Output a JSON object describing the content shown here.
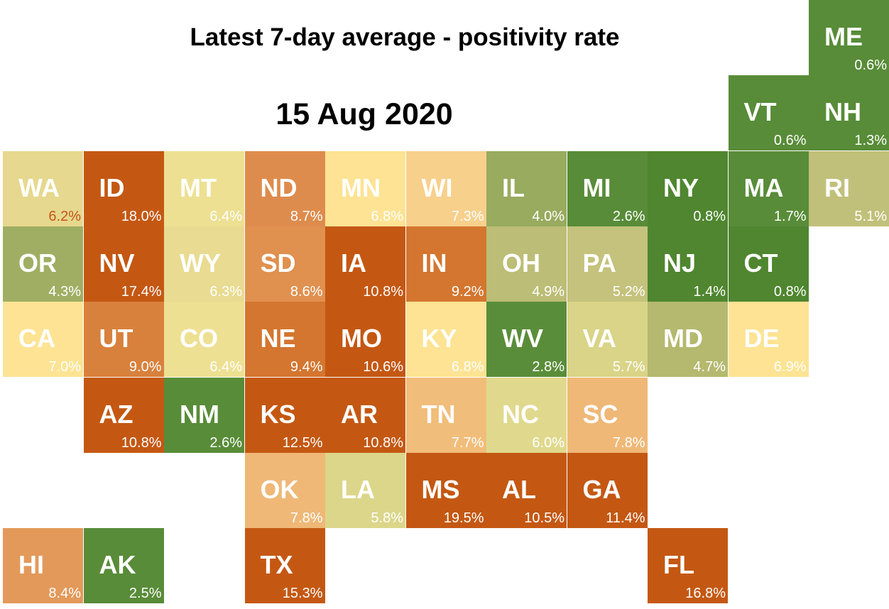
{
  "title": "Latest 7-day average - positivity rate",
  "date": "15 Aug 2020",
  "states": [
    {
      "abbr": "ME",
      "value": "0.6%",
      "col": 10,
      "row": 0,
      "color": "#588c38",
      "text": "#ffffff",
      "pct_color": "#ffffff"
    },
    {
      "abbr": "VT",
      "value": "0.6%",
      "col": 9,
      "row": 1,
      "color": "#588c38",
      "text": "#ffffff",
      "pct_color": "#ffffff"
    },
    {
      "abbr": "NH",
      "value": "1.3%",
      "col": 10,
      "row": 1,
      "color": "#588c38",
      "text": "#ffffff",
      "pct_color": "#ffffff"
    },
    {
      "abbr": "WA",
      "value": "6.2%",
      "col": 0,
      "row": 2,
      "color": "#e6d88e",
      "text": "#ffffff",
      "pct_color": "#c5561b"
    },
    {
      "abbr": "ID",
      "value": "18.0%",
      "col": 1,
      "row": 2,
      "color": "#c45813",
      "text": "#ffffff",
      "pct_color": "#ffffff"
    },
    {
      "abbr": "MT",
      "value": "6.4%",
      "col": 2,
      "row": 2,
      "color": "#ede092",
      "text": "#ffffff",
      "pct_color": "#ffffff"
    },
    {
      "abbr": "ND",
      "value": "8.7%",
      "col": 3,
      "row": 2,
      "color": "#de8c4d",
      "text": "#ffffff",
      "pct_color": "#ffffff"
    },
    {
      "abbr": "MN",
      "value": "6.8%",
      "col": 4,
      "row": 2,
      "color": "#fde393",
      "text": "#ffffff",
      "pct_color": "#ffffff"
    },
    {
      "abbr": "WI",
      "value": "7.3%",
      "col": 5,
      "row": 2,
      "color": "#f7d08c",
      "text": "#ffffff",
      "pct_color": "#ffffff"
    },
    {
      "abbr": "IL",
      "value": "4.0%",
      "col": 6,
      "row": 2,
      "color": "#98ab5f",
      "text": "#ffffff",
      "pct_color": "#ffffff"
    },
    {
      "abbr": "MI",
      "value": "2.6%",
      "col": 7,
      "row": 2,
      "color": "#588c38",
      "text": "#ffffff",
      "pct_color": "#ffffff"
    },
    {
      "abbr": "NY",
      "value": "0.8%",
      "col": 8,
      "row": 2,
      "color": "#4f862f",
      "text": "#ffffff",
      "pct_color": "#ffffff"
    },
    {
      "abbr": "MA",
      "value": "1.7%",
      "col": 9,
      "row": 2,
      "color": "#588c38",
      "text": "#ffffff",
      "pct_color": "#ffffff"
    },
    {
      "abbr": "RI",
      "value": "5.1%",
      "col": 10,
      "row": 2,
      "color": "#c1c07a",
      "text": "#ffffff",
      "pct_color": "#ffffff"
    },
    {
      "abbr": "OR",
      "value": "4.3%",
      "col": 0,
      "row": 3,
      "color": "#a0ae64",
      "text": "#ffffff",
      "pct_color": "#ffffff"
    },
    {
      "abbr": "NV",
      "value": "17.4%",
      "col": 1,
      "row": 3,
      "color": "#c45813",
      "text": "#ffffff",
      "pct_color": "#ffffff"
    },
    {
      "abbr": "WY",
      "value": "6.3%",
      "col": 2,
      "row": 3,
      "color": "#e9db91",
      "text": "#ffffff",
      "pct_color": "#ffffff"
    },
    {
      "abbr": "SD",
      "value": "8.6%",
      "col": 3,
      "row": 3,
      "color": "#e0904f",
      "text": "#ffffff",
      "pct_color": "#ffffff"
    },
    {
      "abbr": "IA",
      "value": "10.8%",
      "col": 4,
      "row": 3,
      "color": "#c45813",
      "text": "#ffffff",
      "pct_color": "#ffffff"
    },
    {
      "abbr": "IN",
      "value": "9.2%",
      "col": 5,
      "row": 3,
      "color": "#d4762f",
      "text": "#ffffff",
      "pct_color": "#ffffff"
    },
    {
      "abbr": "OH",
      "value": "4.9%",
      "col": 6,
      "row": 3,
      "color": "#bcbd76",
      "text": "#ffffff",
      "pct_color": "#ffffff"
    },
    {
      "abbr": "PA",
      "value": "5.2%",
      "col": 7,
      "row": 3,
      "color": "#c4c27c",
      "text": "#ffffff",
      "pct_color": "#ffffff"
    },
    {
      "abbr": "NJ",
      "value": "1.4%",
      "col": 8,
      "row": 3,
      "color": "#4f862f",
      "text": "#ffffff",
      "pct_color": "#ffffff"
    },
    {
      "abbr": "CT",
      "value": "0.8%",
      "col": 9,
      "row": 3,
      "color": "#4f862f",
      "text": "#ffffff",
      "pct_color": "#ffffff"
    },
    {
      "abbr": "CA",
      "value": "7.0%",
      "col": 0,
      "row": 4,
      "color": "#fde393",
      "text": "#ffffff",
      "pct_color": "#ffffff"
    },
    {
      "abbr": "UT",
      "value": "9.0%",
      "col": 1,
      "row": 4,
      "color": "#d8813d",
      "text": "#ffffff",
      "pct_color": "#ffffff"
    },
    {
      "abbr": "CO",
      "value": "6.4%",
      "col": 2,
      "row": 4,
      "color": "#ede092",
      "text": "#ffffff",
      "pct_color": "#ffffff"
    },
    {
      "abbr": "NE",
      "value": "9.4%",
      "col": 3,
      "row": 4,
      "color": "#d4762f",
      "text": "#ffffff",
      "pct_color": "#ffffff"
    },
    {
      "abbr": "MO",
      "value": "10.6%",
      "col": 4,
      "row": 4,
      "color": "#c45813",
      "text": "#ffffff",
      "pct_color": "#ffffff"
    },
    {
      "abbr": "KY",
      "value": "6.8%",
      "col": 5,
      "row": 4,
      "color": "#fde393",
      "text": "#ffffff",
      "pct_color": "#ffffff"
    },
    {
      "abbr": "WV",
      "value": "2.8%",
      "col": 6,
      "row": 4,
      "color": "#5a8d3a",
      "text": "#ffffff",
      "pct_color": "#ffffff"
    },
    {
      "abbr": "VA",
      "value": "5.7%",
      "col": 7,
      "row": 4,
      "color": "#d9d487",
      "text": "#ffffff",
      "pct_color": "#ffffff"
    },
    {
      "abbr": "MD",
      "value": "4.7%",
      "col": 8,
      "row": 4,
      "color": "#b4b96f",
      "text": "#ffffff",
      "pct_color": "#ffffff"
    },
    {
      "abbr": "DE",
      "value": "6.9%",
      "col": 9,
      "row": 4,
      "color": "#fde393",
      "text": "#ffffff",
      "pct_color": "#ffffff"
    },
    {
      "abbr": "AZ",
      "value": "10.8%",
      "col": 1,
      "row": 5,
      "color": "#c45813",
      "text": "#ffffff",
      "pct_color": "#ffffff"
    },
    {
      "abbr": "NM",
      "value": "2.6%",
      "col": 2,
      "row": 5,
      "color": "#588c38",
      "text": "#ffffff",
      "pct_color": "#ffffff"
    },
    {
      "abbr": "KS",
      "value": "12.5%",
      "col": 3,
      "row": 5,
      "color": "#c45813",
      "text": "#ffffff",
      "pct_color": "#ffffff"
    },
    {
      "abbr": "AR",
      "value": "10.8%",
      "col": 4,
      "row": 5,
      "color": "#c45813",
      "text": "#ffffff",
      "pct_color": "#ffffff"
    },
    {
      "abbr": "TN",
      "value": "7.7%",
      "col": 5,
      "row": 5,
      "color": "#f1bd7a",
      "text": "#ffffff",
      "pct_color": "#ffffff"
    },
    {
      "abbr": "NC",
      "value": "6.0%",
      "col": 6,
      "row": 5,
      "color": "#e0d98d",
      "text": "#ffffff",
      "pct_color": "#ffffff"
    },
    {
      "abbr": "SC",
      "value": "7.8%",
      "col": 7,
      "row": 5,
      "color": "#efb877",
      "text": "#ffffff",
      "pct_color": "#ffffff"
    },
    {
      "abbr": "OK",
      "value": "7.8%",
      "col": 3,
      "row": 6,
      "color": "#efb877",
      "text": "#ffffff",
      "pct_color": "#ffffff"
    },
    {
      "abbr": "LA",
      "value": "5.8%",
      "col": 4,
      "row": 6,
      "color": "#dcd68a",
      "text": "#ffffff",
      "pct_color": "#ffffff"
    },
    {
      "abbr": "MS",
      "value": "19.5%",
      "col": 5,
      "row": 6,
      "color": "#c45813",
      "text": "#ffffff",
      "pct_color": "#ffffff"
    },
    {
      "abbr": "AL",
      "value": "10.5%",
      "col": 6,
      "row": 6,
      "color": "#c45813",
      "text": "#ffffff",
      "pct_color": "#ffffff"
    },
    {
      "abbr": "GA",
      "value": "11.4%",
      "col": 7,
      "row": 6,
      "color": "#c45813",
      "text": "#ffffff",
      "pct_color": "#ffffff"
    },
    {
      "abbr": "HI",
      "value": "8.4%",
      "col": 0,
      "row": 7,
      "color": "#e3995a",
      "text": "#ffffff",
      "pct_color": "#ffffff"
    },
    {
      "abbr": "AK",
      "value": "2.5%",
      "col": 1,
      "row": 7,
      "color": "#588c38",
      "text": "#ffffff",
      "pct_color": "#ffffff"
    },
    {
      "abbr": "TX",
      "value": "15.3%",
      "col": 3,
      "row": 7,
      "color": "#c45813",
      "text": "#ffffff",
      "pct_color": "#ffffff"
    },
    {
      "abbr": "FL",
      "value": "16.8%",
      "col": 8,
      "row": 7,
      "color": "#c45813",
      "text": "#ffffff",
      "pct_color": "#ffffff"
    }
  ]
}
